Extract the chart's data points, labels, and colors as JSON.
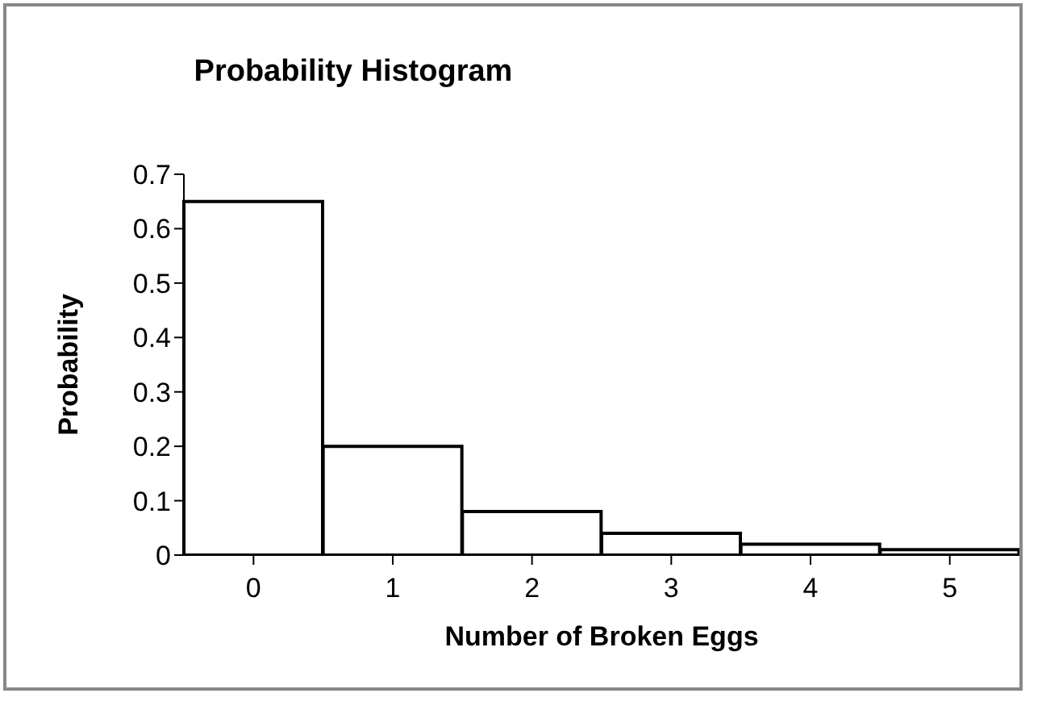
{
  "chart_data": {
    "type": "bar",
    "title": "Probability Histogram",
    "xlabel": "Number of Broken Eggs",
    "ylabel": "Probability",
    "categories": [
      "0",
      "1",
      "2",
      "3",
      "4",
      "5"
    ],
    "values": [
      0.65,
      0.2,
      0.08,
      0.04,
      0.02,
      0.01
    ],
    "color": "#ffffff",
    "ylim": [
      0,
      0.7
    ],
    "yticks": [
      0,
      0.1,
      0.2,
      0.3,
      0.4,
      0.5,
      0.6,
      0.7
    ],
    "grid": false,
    "legend": false
  }
}
